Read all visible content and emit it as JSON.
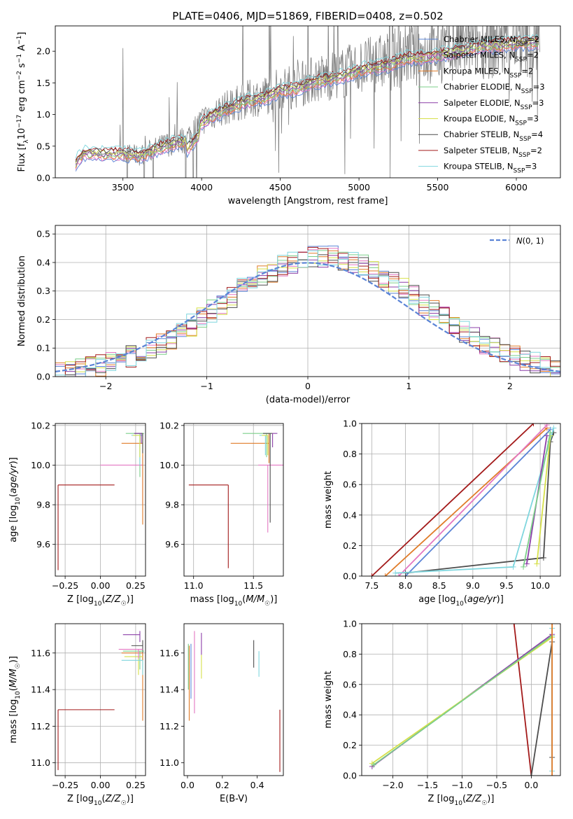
{
  "colors": {
    "Chabrier MILES": "#5b84d6",
    "Salpeter MILES": "#e377c2",
    "Kroupa MILES": "#e07b28",
    "Chabrier ELODIE": "#7ccf8a",
    "Salpeter ELODIE": "#8b3fa8",
    "Kroupa ELODIE": "#d6e04a",
    "Chabrier STELIB": "#4d4d4d",
    "Salpeter STELIB": "#a31a1a",
    "Kroupa STELIB": "#7fd6de",
    "data": "#808080",
    "gauss": "#5b84d6"
  },
  "chart_data": [
    {
      "id": "spectrum",
      "type": "line",
      "title": "PLATE=0406, MJD=51869, FIBERID=0408, z=0.502",
      "xlabel": "wavelength [Angstrom, rest frame]",
      "ylabel": "Flux [f_λ 10^-17 erg cm^-2 s^-1 A^-1]",
      "xlim": [
        3070,
        6280
      ],
      "ylim": [
        0,
        2.4
      ],
      "xticks": [
        3500,
        4000,
        4500,
        5000,
        5500,
        6000
      ],
      "yticks": [
        0.0,
        0.5,
        1.0,
        1.5,
        2.0
      ],
      "legend": [
        {
          "series": "Chabrier MILES",
          "label": "Chabrier MILES, N",
          "sub": "SSP",
          "n": "=2"
        },
        {
          "series": "Salpeter MILES",
          "label": "Salpeter MILES, N",
          "sub": "SSP",
          "n": "=2"
        },
        {
          "series": "Kroupa MILES",
          "label": "Kroupa MILES, N",
          "sub": "SSP",
          "n": "=2"
        },
        {
          "series": "Chabrier ELODIE",
          "label": "Chabrier ELODIE, N",
          "sub": "SSP",
          "n": "=3"
        },
        {
          "series": "Salpeter ELODIE",
          "label": "Salpeter ELODIE, N",
          "sub": "SSP",
          "n": "=3"
        },
        {
          "series": "Kroupa ELODIE",
          "label": "Kroupa ELODIE, N",
          "sub": "SSP",
          "n": "=3"
        },
        {
          "series": "Chabrier STELIB",
          "label": "Chabrier STELIB, N",
          "sub": "SSP",
          "n": "=4"
        },
        {
          "series": "Salpeter STELIB",
          "label": "Salpeter STELIB, N",
          "sub": "SSP",
          "n": "=2"
        },
        {
          "series": "Kroupa STELIB",
          "label": "Kroupa STELIB, N",
          "sub": "SSP",
          "n": "=3"
        }
      ],
      "legend_position": "top-right",
      "model_anchors": {
        "x": [
          3200,
          3250,
          3400,
          3500,
          3600,
          3700,
          3800,
          3900,
          3950,
          4000,
          4100,
          4200,
          4300,
          4400,
          4500,
          4600,
          4700,
          4800,
          4900,
          5000,
          5100,
          5200,
          5300,
          5400,
          5500,
          5600,
          5700,
          5800,
          5900,
          6000,
          6100
        ],
        "y": [
          0.25,
          0.4,
          0.38,
          0.4,
          0.35,
          0.45,
          0.55,
          0.6,
          0.75,
          0.9,
          1.05,
          1.15,
          1.25,
          1.3,
          1.42,
          1.45,
          1.55,
          1.6,
          1.65,
          1.75,
          1.8,
          1.85,
          1.95,
          1.95,
          2.0,
          2.05,
          2.1,
          2.15,
          2.15,
          2.2,
          2.2
        ]
      }
    },
    {
      "id": "residuals",
      "type": "line",
      "xlabel": "(data-model)/error",
      "ylabel": "Normed distribution",
      "xlim": [
        -2.5,
        2.5
      ],
      "ylim": [
        0,
        0.53
      ],
      "xticks": [
        -2,
        -1,
        0,
        1,
        2
      ],
      "yticks": [
        0.0,
        0.1,
        0.2,
        0.3,
        0.4,
        0.5
      ],
      "grid": true,
      "legend": [
        {
          "series": "gauss",
          "label": "N(0, 1)"
        }
      ],
      "legend_position": "top-right",
      "histogram_bin_width": 0.1
    },
    {
      "id": "Z-age",
      "type": "scatter",
      "xlabel": "Z [log10(Z/Z☉)]",
      "ylabel": "age  [log10(age/yr)]",
      "xlim": [
        -0.32,
        0.32
      ],
      "ylim": [
        9.44,
        10.21
      ],
      "xticks": [
        -0.25,
        0.0,
        0.25
      ],
      "xtick_labels": [
        "−0.25",
        "0.00",
        "0.25"
      ],
      "yticks": [
        9.6,
        9.8,
        10.0,
        10.2
      ],
      "grid": true,
      "points": [
        {
          "series": "Salpeter STELIB",
          "x": -0.3,
          "y": 9.9,
          "xerr": [
            0.0,
            0.4
          ],
          "yerr": [
            0.43,
            0.0
          ]
        },
        {
          "series": "Salpeter MILES",
          "x": 0.3,
          "y": 10.0,
          "xerr": [
            0.3,
            0.0
          ],
          "yerr": [
            0.2,
            0.05
          ]
        },
        {
          "series": "Kroupa MILES",
          "x": 0.3,
          "y": 10.11,
          "xerr": [
            0.15,
            0.0
          ],
          "yerr": [
            0.41,
            0.05
          ]
        },
        {
          "series": "Chabrier ELODIE",
          "x": 0.28,
          "y": 10.16,
          "xerr": [
            0.1,
            0.03
          ],
          "yerr": [
            0.22,
            0.0
          ]
        },
        {
          "series": "Kroupa STELIB",
          "x": 0.28,
          "y": 10.15,
          "xerr": [
            0.06,
            0.02
          ],
          "yerr": [
            0.15,
            0.0
          ]
        },
        {
          "series": "Chabrier STELIB",
          "x": 0.3,
          "y": 10.16,
          "xerr": [
            0.06,
            0.0
          ],
          "yerr": [
            0.1,
            0.0
          ]
        },
        {
          "series": "Kroupa ELODIE",
          "x": 0.28,
          "y": 10.15,
          "xerr": [
            0.05,
            0.0
          ],
          "yerr": [
            0.11,
            0.0
          ]
        },
        {
          "series": "Salpeter ELODIE",
          "x": 0.29,
          "y": 10.16,
          "xerr": [
            0.05,
            0.0
          ],
          "yerr": [
            0.05,
            0.0
          ]
        }
      ]
    },
    {
      "id": "mass-age",
      "type": "scatter",
      "xlabel": "mass [log10(M/M☉)]",
      "ylabel": "",
      "xlim": [
        10.92,
        11.75
      ],
      "ylim": [
        9.44,
        10.21
      ],
      "xticks": [
        11.0,
        11.5
      ],
      "yticks": [
        9.6,
        9.8,
        10.0,
        10.2
      ],
      "grid": true,
      "points": [
        {
          "series": "Salpeter STELIB",
          "x": 11.29,
          "y": 9.9,
          "xerr": [
            0.33,
            0.0
          ],
          "yerr": [
            0.42,
            0.0
          ]
        },
        {
          "series": "Salpeter MILES",
          "x": 11.62,
          "y": 10.0,
          "xerr": [
            0.08,
            0.13
          ],
          "yerr": [
            0.34,
            0.0
          ]
        },
        {
          "series": "Kroupa MILES",
          "x": 11.63,
          "y": 10.11,
          "xerr": [
            0.32,
            0.0
          ],
          "yerr": [
            0.1,
            0.05
          ]
        },
        {
          "series": "Chabrier ELODIE",
          "x": 11.61,
          "y": 10.16,
          "xerr": [
            0.2,
            0.03
          ],
          "yerr": [
            0.12,
            0.0
          ]
        },
        {
          "series": "Kroupa STELIB",
          "x": 11.6,
          "y": 10.15,
          "xerr": [
            0.05,
            0.02
          ],
          "yerr": [
            0.1,
            0.0
          ]
        },
        {
          "series": "Chabrier STELIB",
          "x": 11.64,
          "y": 10.16,
          "xerr": [
            0.06,
            0.02
          ],
          "yerr": [
            0.45,
            0.0
          ]
        },
        {
          "series": "Kroupa ELODIE",
          "x": 11.62,
          "y": 10.15,
          "xerr": [
            0.05,
            0.0
          ],
          "yerr": [
            0.1,
            0.0
          ]
        },
        {
          "series": "Salpeter ELODIE",
          "x": 11.66,
          "y": 10.16,
          "xerr": [
            0.0,
            0.04
          ],
          "yerr": [
            0.07,
            0.0
          ]
        }
      ]
    },
    {
      "id": "age-weight",
      "type": "line",
      "xlabel": "age  [log10(age/yr)]",
      "ylabel": "mass weight",
      "xlim": [
        7.35,
        10.3
      ],
      "ylim": [
        0,
        1.0
      ],
      "xticks": [
        7.5,
        8.0,
        8.5,
        9.0,
        9.5,
        10.0
      ],
      "yticks": [
        0.0,
        0.2,
        0.4,
        0.6,
        0.8,
        1.0
      ],
      "grid": true,
      "lines": [
        {
          "series": "Salpeter STELIB",
          "x": [
            7.5,
            9.9
          ],
          "y": [
            0.0,
            1.0
          ]
        },
        {
          "series": "Kroupa MILES",
          "x": [
            7.7,
            10.1
          ],
          "y": [
            0.0,
            0.97
          ]
        },
        {
          "series": "Salpeter MILES",
          "x": [
            7.9,
            10.1
          ],
          "y": [
            0.0,
            0.99
          ]
        },
        {
          "series": "Chabrier MILES",
          "x": [
            8.0,
            10.15
          ],
          "y": [
            0.0,
            0.96
          ]
        },
        {
          "series": "Chabrier STELIB",
          "x": [
            8.0,
            10.05,
            10.15,
            10.2
          ],
          "y": [
            0.02,
            0.12,
            0.88,
            0.94
          ]
        },
        {
          "series": "Kroupa STELIB",
          "x": [
            7.85,
            9.6,
            10.2
          ],
          "y": [
            0.02,
            0.06,
            0.97
          ]
        },
        {
          "series": "Kroupa ELODIE",
          "x": [
            9.95,
            10.15
          ],
          "y": [
            0.08,
            0.92
          ]
        },
        {
          "series": "Salpeter ELODIE",
          "x": [
            9.8,
            10.1
          ],
          "y": [
            0.08,
            0.92
          ]
        },
        {
          "series": "Chabrier ELODIE",
          "x": [
            9.75,
            10.15
          ],
          "y": [
            0.06,
            0.94
          ]
        }
      ]
    },
    {
      "id": "Z-mass",
      "type": "scatter",
      "xlabel": "Z [log10(Z/Z☉)]",
      "ylabel": "mass [log10(M/M☉)]",
      "xlim": [
        -0.32,
        0.32
      ],
      "ylim": [
        10.93,
        11.76
      ],
      "xticks": [
        -0.25,
        0.0,
        0.25
      ],
      "xtick_labels": [
        "−0.25",
        "0.00",
        "0.25"
      ],
      "yticks": [
        11.0,
        11.2,
        11.4,
        11.6
      ],
      "grid": true,
      "points": [
        {
          "series": "Salpeter STELIB",
          "x": -0.3,
          "y": 11.29,
          "xerr": [
            0.0,
            0.4
          ],
          "yerr": [
            0.33,
            0.0
          ]
        },
        {
          "series": "Salpeter ELODIE",
          "x": 0.28,
          "y": 11.7,
          "xerr": [
            0.12,
            0.0
          ],
          "yerr": [
            0.04,
            0.02
          ]
        },
        {
          "series": "Chabrier STELIB",
          "x": 0.3,
          "y": 11.64,
          "xerr": [
            0.08,
            0.0
          ],
          "yerr": [
            0.08,
            0.03
          ]
        },
        {
          "series": "Kroupa MILES",
          "x": 0.3,
          "y": 11.6,
          "xerr": [
            0.15,
            0.0
          ],
          "yerr": [
            0.37,
            0.0
          ]
        },
        {
          "series": "Chabrier ELODIE",
          "x": 0.28,
          "y": 11.61,
          "xerr": [
            0.12,
            0.03
          ],
          "yerr": [
            0.1,
            0.0
          ]
        },
        {
          "series": "Kroupa ELODIE",
          "x": 0.27,
          "y": 11.58,
          "xerr": [
            0.1,
            0.03
          ],
          "yerr": [
            0.1,
            0.0
          ]
        },
        {
          "series": "Salpeter MILES",
          "x": 0.27,
          "y": 11.62,
          "xerr": [
            0.14,
            0.03
          ],
          "yerr": [
            0.05,
            0.0
          ]
        },
        {
          "series": "Kroupa STELIB",
          "x": 0.3,
          "y": 11.56,
          "xerr": [
            0.15,
            0.0
          ],
          "yerr": [
            0.08,
            0.0
          ]
        }
      ]
    },
    {
      "id": "EBV-mass",
      "type": "scatter",
      "xlabel": "E(B-V)",
      "ylabel": "",
      "xlim": [
        -0.02,
        0.55
      ],
      "ylim": [
        10.93,
        11.76
      ],
      "xticks": [
        0.0,
        0.2,
        0.4
      ],
      "yticks": [
        11.0,
        11.2,
        11.4,
        11.6
      ],
      "grid": false,
      "points": [
        {
          "series": "Chabrier STELIB",
          "x": 0.38,
          "y": 11.6,
          "yerr": [
            0.08,
            0.07
          ]
        },
        {
          "series": "Kroupa STELIB",
          "x": 0.41,
          "y": 11.55,
          "yerr": [
            0.08,
            0.06
          ]
        },
        {
          "series": "Salpeter STELIB",
          "x": 0.53,
          "y": 11.1,
          "yerr": [
            0.15,
            0.19
          ]
        },
        {
          "series": "Salpeter ELODIE",
          "x": 0.08,
          "y": 11.66,
          "yerr": [
            0.07,
            0.05
          ]
        },
        {
          "series": "Kroupa ELODIE",
          "x": 0.08,
          "y": 11.54,
          "yerr": [
            0.08,
            0.05
          ]
        },
        {
          "series": "Salpeter MILES",
          "x": 0.04,
          "y": 11.57,
          "yerr": [
            0.3,
            0.15
          ]
        },
        {
          "series": "Kroupa MILES",
          "x": 0.01,
          "y": 11.5,
          "yerr": [
            0.27,
            0.14
          ]
        },
        {
          "series": "Chabrier MILES",
          "x": 0.02,
          "y": 11.55,
          "yerr": [
            0.2,
            0.1
          ]
        },
        {
          "series": "Chabrier ELODIE",
          "x": 0.005,
          "y": 11.55,
          "yerr": [
            0.15,
            0.1
          ]
        }
      ]
    },
    {
      "id": "Z-weight",
      "type": "line",
      "xlabel": "Z [log10(Z/Z☉)]",
      "ylabel": "mass weight",
      "xlim": [
        -2.45,
        0.42
      ],
      "ylim": [
        0,
        1.0
      ],
      "xticks": [
        -2.0,
        -1.5,
        -1.0,
        -0.5,
        0.0
      ],
      "xtick_labels": [
        "−2.0",
        "−1.5",
        "−1.0",
        "−0.5",
        "0.0"
      ],
      "yticks": [
        0.0,
        0.2,
        0.4,
        0.6,
        0.8,
        1.0
      ],
      "grid": true,
      "lines": [
        {
          "series": "Salpeter STELIB",
          "x": [
            -0.25,
            0.0
          ],
          "y": [
            1.0,
            0.0
          ]
        },
        {
          "series": "Salpeter ELODIE",
          "x": [
            -2.3,
            0.3
          ],
          "y": [
            0.06,
            0.93
          ]
        },
        {
          "series": "Kroupa ELODIE",
          "x": [
            -2.3,
            0.3
          ],
          "y": [
            0.08,
            0.91
          ]
        },
        {
          "series": "Chabrier ELODIE",
          "x": [
            -2.28,
            0.3
          ],
          "y": [
            0.07,
            0.92
          ]
        },
        {
          "series": "Chabrier STELIB",
          "x": [
            0.0,
            0.3,
            0.3
          ],
          "y": [
            0.0,
            0.88,
            0.12
          ]
        },
        {
          "series": "Kroupa STELIB",
          "x": [
            0.3,
            0.3
          ],
          "y": [
            0.03,
            0.97
          ]
        },
        {
          "series": "Kroupa MILES",
          "x": [
            0.3,
            0.3
          ],
          "y": [
            0.0,
            1.0
          ]
        }
      ]
    }
  ]
}
